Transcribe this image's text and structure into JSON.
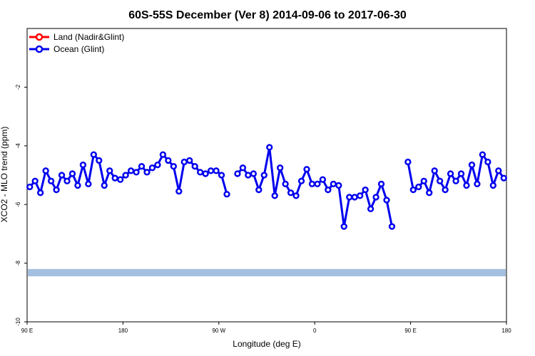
{
  "chart_data": {
    "type": "line",
    "title": "60S-55S December (Ver 8)   2014-09-06 to 2017-06-30",
    "xlabel": "Longitude (deg E)",
    "ylabel": "XCO2 - MLO trend (ppm)",
    "xlim": [
      90,
      450
    ],
    "ylim": [
      -10,
      0
    ],
    "x_ticks": [
      {
        "value": 90,
        "label": "90 E"
      },
      {
        "value": 180,
        "label": "180"
      },
      {
        "value": 270,
        "label": "90 W"
      },
      {
        "value": 360,
        "label": "0"
      },
      {
        "value": 450,
        "label": "90 E"
      },
      {
        "value": 540,
        "label": "180"
      }
    ],
    "y_ticks": [
      {
        "value": -2,
        "label": "-2"
      },
      {
        "value": -4,
        "label": "-4"
      },
      {
        "value": -6,
        "label": "-6"
      },
      {
        "value": -8,
        "label": "-8"
      },
      {
        "value": -10,
        "label": "-10"
      }
    ],
    "grid": false,
    "legend_position": "top-left",
    "band": {
      "from": -8.45,
      "to": -8.2,
      "color": "#a5bfe0"
    },
    "series": [
      {
        "name": "Land (Nadir&Glint)",
        "color": "#ff0000",
        "x": [],
        "y": []
      },
      {
        "name": "Ocean (Glint)",
        "color": "#0000ee",
        "segments": [
          {
            "x": [
              92.5,
              97.5,
              102.5,
              107.5,
              112.5,
              117.5,
              122.5,
              127.5,
              132.5,
              137.5,
              142.5,
              147.5,
              152.5,
              157.5,
              162.5,
              167.5,
              172.5,
              177.5,
              182.5,
              187.5,
              192.5,
              197.5,
              202.5,
              207.5,
              212.5,
              217.5,
              222.5,
              227.5,
              232.5,
              237.5,
              242.5,
              247.5,
              252.5,
              257.5,
              262.5,
              267.5,
              272.5,
              277.5
            ],
            "y": [
              -5.4,
              -5.2,
              -5.6,
              -4.85,
              -5.2,
              -5.5,
              -5.0,
              -5.2,
              -4.95,
              -5.35,
              -4.65,
              -5.3,
              -4.3,
              -4.5,
              -5.35,
              -4.85,
              -5.1,
              -5.15,
              -5.0,
              -4.85,
              -4.9,
              -4.7,
              -4.9,
              -4.75,
              -4.65,
              -4.3,
              -4.5,
              -4.7,
              -5.55,
              -4.55,
              -4.5,
              -4.7,
              -4.9,
              -4.95,
              -4.85,
              -4.85,
              -5.0,
              -5.65
            ]
          },
          {
            "x": [
              287.5,
              292.5,
              297.5,
              302.5,
              307.5,
              312.5,
              317.5,
              322.5,
              327.5,
              332.5,
              337.5,
              342.5,
              347.5,
              352.5,
              357.5,
              362.5,
              367.5,
              372.5,
              377.5,
              382.5,
              387.5,
              392.5,
              397.5,
              402.5,
              407.5,
              412.5,
              417.5,
              422.5,
              427.5,
              432.5,
              437.5
            ],
            "y": [
              -4.95,
              -4.75,
              -5.0,
              -4.95,
              -5.5,
              -5.0,
              -4.05,
              -5.7,
              -4.75,
              -5.3,
              -5.6,
              -5.7,
              -5.2,
              -4.8,
              -5.3,
              -5.3,
              -5.15,
              -5.5,
              -5.3,
              -5.35,
              -6.75,
              -5.75,
              -5.75,
              -5.7,
              -5.5,
              -6.15,
              -5.75,
              -5.3,
              -5.85,
              -6.75,
              null
            ]
          },
          {
            "x": [
              447.5,
              452.5,
              457.5,
              462.5,
              467.5,
              472.5,
              477.5,
              482.5,
              487.5,
              492.5,
              497.5,
              502.5,
              507.5,
              512.5,
              517.5,
              522.5,
              527.5,
              532.5,
              537.5
            ],
            "y": [
              -4.55,
              -5.5,
              -5.4,
              -5.2,
              -5.6,
              -4.85,
              -5.2,
              -5.5,
              -4.95,
              -5.2,
              -4.95,
              -5.35,
              -4.65,
              -5.3,
              -4.3,
              -4.55,
              -5.35,
              -4.85,
              -5.1
            ]
          }
        ]
      }
    ]
  }
}
